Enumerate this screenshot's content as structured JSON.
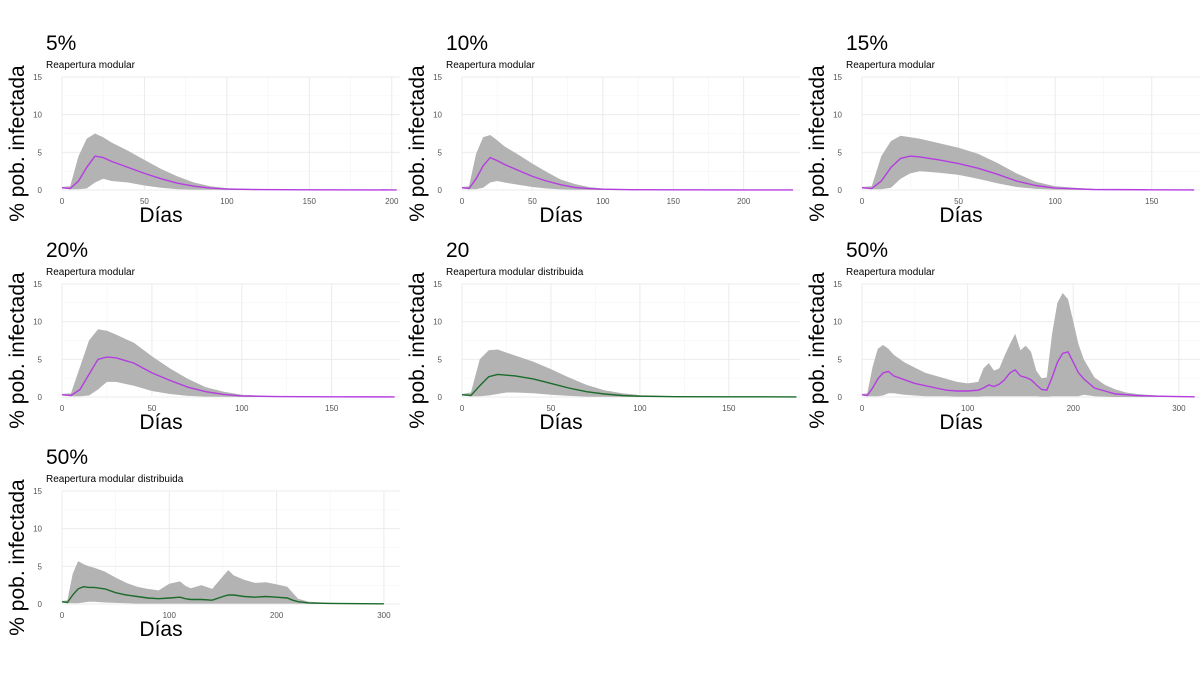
{
  "axis_labels": {
    "y": "% pob. infectada",
    "x": "Días"
  },
  "colors": {
    "band": "#b3b3b3",
    "modular": "#b43de0",
    "distribuida": "#1a6b2a"
  },
  "chart_data": [
    {
      "type": "area",
      "title": "5%",
      "subtitle": "Reapertura modular",
      "line_color": "#b43de0",
      "xlim": [
        0,
        205
      ],
      "ylim": [
        0,
        15
      ],
      "xticks": [
        0,
        50,
        100,
        150,
        200
      ],
      "yticks": [
        0,
        5,
        10,
        15
      ],
      "x": [
        0,
        5,
        10,
        15,
        20,
        25,
        30,
        40,
        50,
        60,
        70,
        80,
        90,
        100,
        120,
        150,
        200,
        203
      ],
      "mean": [
        0.3,
        0.2,
        1.2,
        3.0,
        4.5,
        4.3,
        3.8,
        3.0,
        2.2,
        1.5,
        0.9,
        0.5,
        0.25,
        0.12,
        0.05,
        0.02,
        0.01,
        0.01
      ],
      "upper": [
        0.4,
        0.5,
        4.5,
        6.8,
        7.5,
        7.0,
        6.3,
        5.2,
        4.0,
        2.8,
        1.8,
        1.0,
        0.5,
        0.25,
        0.1,
        0.05,
        0.02,
        0.02
      ],
      "lower": [
        0.2,
        0.1,
        0.1,
        0.2,
        1.0,
        1.5,
        1.2,
        1.0,
        0.6,
        0.3,
        0.1,
        0.05,
        0.02,
        0.01,
        0.0,
        0.0,
        0.0,
        0.0
      ]
    },
    {
      "type": "area",
      "title": "10%",
      "subtitle": "Reapertura modular",
      "line_color": "#b43de0",
      "xlim": [
        0,
        240
      ],
      "ylim": [
        0,
        15
      ],
      "xticks": [
        0,
        50,
        100,
        150,
        200
      ],
      "yticks": [
        0,
        5,
        10,
        15
      ],
      "x": [
        0,
        5,
        10,
        15,
        20,
        25,
        30,
        40,
        50,
        60,
        70,
        80,
        90,
        100,
        120,
        150,
        200,
        235
      ],
      "mean": [
        0.3,
        0.2,
        1.5,
        3.2,
        4.3,
        3.9,
        3.4,
        2.6,
        1.8,
        1.2,
        0.7,
        0.35,
        0.18,
        0.1,
        0.04,
        0.02,
        0.01,
        0.01
      ],
      "upper": [
        0.4,
        0.5,
        4.8,
        7.0,
        7.3,
        6.6,
        5.8,
        4.7,
        3.5,
        2.4,
        1.4,
        0.8,
        0.4,
        0.2,
        0.08,
        0.04,
        0.02,
        0.02
      ],
      "lower": [
        0.2,
        0.1,
        0.1,
        0.3,
        1.0,
        1.2,
        1.0,
        0.7,
        0.4,
        0.2,
        0.08,
        0.03,
        0.01,
        0.0,
        0.0,
        0.0,
        0.0,
        0.0
      ]
    },
    {
      "type": "area",
      "title": "15%",
      "subtitle": "Reapertura modular",
      "line_color": "#b43de0",
      "xlim": [
        0,
        175
      ],
      "ylim": [
        0,
        15
      ],
      "xticks": [
        0,
        50,
        100,
        150
      ],
      "yticks": [
        0,
        5,
        10,
        15
      ],
      "x": [
        0,
        5,
        10,
        15,
        20,
        25,
        30,
        40,
        50,
        60,
        70,
        80,
        90,
        100,
        120,
        150,
        172
      ],
      "mean": [
        0.3,
        0.2,
        1.2,
        3.0,
        4.2,
        4.5,
        4.4,
        4.0,
        3.5,
        2.9,
        2.1,
        1.2,
        0.6,
        0.25,
        0.06,
        0.02,
        0.01
      ],
      "upper": [
        0.4,
        0.5,
        4.5,
        6.5,
        7.2,
        7.0,
        6.8,
        6.2,
        5.6,
        4.8,
        3.6,
        2.2,
        1.1,
        0.5,
        0.12,
        0.04,
        0.02
      ],
      "lower": [
        0.2,
        0.1,
        0.1,
        0.3,
        1.5,
        2.2,
        2.5,
        2.3,
        2.0,
        1.5,
        0.9,
        0.4,
        0.15,
        0.05,
        0.0,
        0.0,
        0.0
      ]
    },
    {
      "type": "area",
      "title": "20%",
      "subtitle": "Reapertura modular",
      "line_color": "#b43de0",
      "xlim": [
        0,
        188
      ],
      "ylim": [
        0,
        15
      ],
      "xticks": [
        0,
        50,
        100,
        150
      ],
      "yticks": [
        0,
        5,
        10,
        15
      ],
      "x": [
        0,
        5,
        10,
        15,
        20,
        25,
        30,
        40,
        50,
        60,
        70,
        80,
        90,
        100,
        120,
        150,
        185
      ],
      "mean": [
        0.3,
        0.2,
        1.0,
        3.0,
        5.0,
        5.3,
        5.2,
        4.5,
        3.2,
        2.2,
        1.3,
        0.7,
        0.35,
        0.15,
        0.05,
        0.02,
        0.01
      ],
      "upper": [
        0.4,
        0.5,
        4.0,
        7.5,
        9.0,
        8.8,
        8.3,
        7.2,
        5.4,
        3.8,
        2.4,
        1.3,
        0.7,
        0.3,
        0.1,
        0.04,
        0.02
      ],
      "lower": [
        0.2,
        0.1,
        0.1,
        0.2,
        1.0,
        2.0,
        2.0,
        1.5,
        0.8,
        0.4,
        0.15,
        0.05,
        0.02,
        0.0,
        0.0,
        0.0,
        0.0
      ]
    },
    {
      "type": "area",
      "title": "20",
      "subtitle": "Reapertura modular distribuida",
      "line_color": "#1a6b2a",
      "xlim": [
        0,
        190
      ],
      "ylim": [
        0,
        15
      ],
      "xticks": [
        0,
        50,
        100,
        150
      ],
      "yticks": [
        0,
        5,
        10,
        15
      ],
      "x": [
        0,
        5,
        10,
        15,
        20,
        25,
        30,
        40,
        50,
        60,
        70,
        80,
        90,
        100,
        120,
        150,
        188
      ],
      "mean": [
        0.3,
        0.2,
        1.5,
        2.7,
        3.0,
        2.9,
        2.8,
        2.4,
        1.8,
        1.2,
        0.7,
        0.4,
        0.2,
        0.1,
        0.04,
        0.02,
        0.01
      ],
      "upper": [
        0.4,
        0.6,
        5.0,
        6.2,
        6.3,
        5.9,
        5.5,
        4.7,
        3.7,
        2.6,
        1.6,
        0.9,
        0.5,
        0.25,
        0.1,
        0.04,
        0.02
      ],
      "lower": [
        0.2,
        0.1,
        0.1,
        0.2,
        0.4,
        0.6,
        0.6,
        0.5,
        0.3,
        0.15,
        0.05,
        0.02,
        0.01,
        0.0,
        0.0,
        0.0,
        0.0
      ]
    },
    {
      "type": "area",
      "title": "50%",
      "subtitle": "Reapertura modular",
      "line_color": "#b43de0",
      "xlim": [
        0,
        320
      ],
      "ylim": [
        0,
        15
      ],
      "xticks": [
        0,
        100,
        200,
        300
      ],
      "yticks": [
        0,
        5,
        10,
        15
      ],
      "x": [
        0,
        5,
        10,
        15,
        20,
        25,
        30,
        40,
        50,
        60,
        70,
        80,
        90,
        100,
        110,
        115,
        120,
        125,
        130,
        135,
        140,
        145,
        150,
        155,
        160,
        165,
        170,
        175,
        180,
        185,
        190,
        195,
        200,
        205,
        210,
        220,
        230,
        240,
        250,
        260,
        280,
        300,
        315
      ],
      "mean": [
        0.3,
        0.2,
        1.2,
        2.4,
        3.2,
        3.4,
        2.8,
        2.3,
        1.8,
        1.5,
        1.2,
        0.9,
        0.8,
        0.8,
        0.9,
        1.2,
        1.6,
        1.4,
        1.7,
        2.3,
        3.2,
        3.6,
        2.8,
        2.6,
        2.3,
        1.6,
        1.0,
        0.9,
        2.6,
        4.6,
        5.8,
        6.0,
        4.6,
        3.2,
        2.4,
        1.2,
        0.8,
        0.4,
        0.3,
        0.2,
        0.1,
        0.05,
        0.02
      ],
      "upper": [
        0.4,
        0.5,
        4.0,
        6.4,
        6.9,
        6.4,
        5.6,
        4.6,
        3.9,
        3.2,
        2.8,
        2.4,
        2.0,
        1.8,
        2.0,
        3.8,
        4.5,
        3.5,
        3.8,
        5.5,
        7.0,
        8.4,
        6.2,
        6.8,
        6.0,
        3.5,
        2.5,
        2.6,
        8.4,
        12.5,
        13.8,
        13.0,
        10.0,
        7.0,
        5.0,
        2.6,
        1.6,
        1.0,
        0.6,
        0.4,
        0.2,
        0.1,
        0.05
      ],
      "lower": [
        0.2,
        0.1,
        0.1,
        0.1,
        0.2,
        0.5,
        0.5,
        0.3,
        0.2,
        0.1,
        0.1,
        0.1,
        0.05,
        0.05,
        0.05,
        0.1,
        0.1,
        0.1,
        0.1,
        0.1,
        0.1,
        0.1,
        0.1,
        0.1,
        0.1,
        0.1,
        0.05,
        0.05,
        0.1,
        0.1,
        0.1,
        0.1,
        0.1,
        0.1,
        0.3,
        0.1,
        0.05,
        0.0,
        0.0,
        0.0,
        0.0,
        0.0,
        0.0
      ]
    },
    {
      "type": "area",
      "title": "50%",
      "subtitle": "Reapertura modular distribuida",
      "line_color": "#1a6b2a",
      "xlim": [
        0,
        315
      ],
      "ylim": [
        0,
        15
      ],
      "xticks": [
        0,
        100,
        200,
        300
      ],
      "yticks": [
        0,
        5,
        10,
        15
      ],
      "x": [
        0,
        5,
        10,
        15,
        20,
        25,
        30,
        40,
        50,
        60,
        70,
        80,
        90,
        100,
        110,
        115,
        120,
        130,
        140,
        150,
        155,
        160,
        170,
        180,
        190,
        200,
        210,
        215,
        220,
        230,
        250,
        280,
        300
      ],
      "mean": [
        0.3,
        0.2,
        1.2,
        2.0,
        2.3,
        2.2,
        2.2,
        2.0,
        1.5,
        1.2,
        1.0,
        0.8,
        0.7,
        0.8,
        0.9,
        0.7,
        0.6,
        0.6,
        0.5,
        1.0,
        1.2,
        1.2,
        1.0,
        0.9,
        1.0,
        0.9,
        0.8,
        0.5,
        0.3,
        0.15,
        0.08,
        0.04,
        0.02
      ],
      "upper": [
        0.4,
        0.5,
        4.0,
        5.7,
        5.3,
        5.0,
        4.8,
        4.3,
        3.5,
        2.8,
        2.3,
        2.0,
        1.8,
        2.7,
        3.0,
        2.4,
        2.1,
        2.5,
        2.0,
        3.7,
        4.5,
        3.8,
        3.2,
        2.8,
        2.9,
        2.6,
        2.3,
        1.5,
        0.7,
        0.3,
        0.15,
        0.07,
        0.03
      ],
      "lower": [
        0.2,
        0.1,
        0.1,
        0.1,
        0.2,
        0.3,
        0.3,
        0.2,
        0.15,
        0.1,
        0.05,
        0.05,
        0.05,
        0.05,
        0.05,
        0.05,
        0.05,
        0.05,
        0.05,
        0.05,
        0.05,
        0.05,
        0.05,
        0.05,
        0.05,
        0.05,
        0.05,
        0.05,
        0.02,
        0.01,
        0.0,
        0.0,
        0.0
      ]
    }
  ]
}
